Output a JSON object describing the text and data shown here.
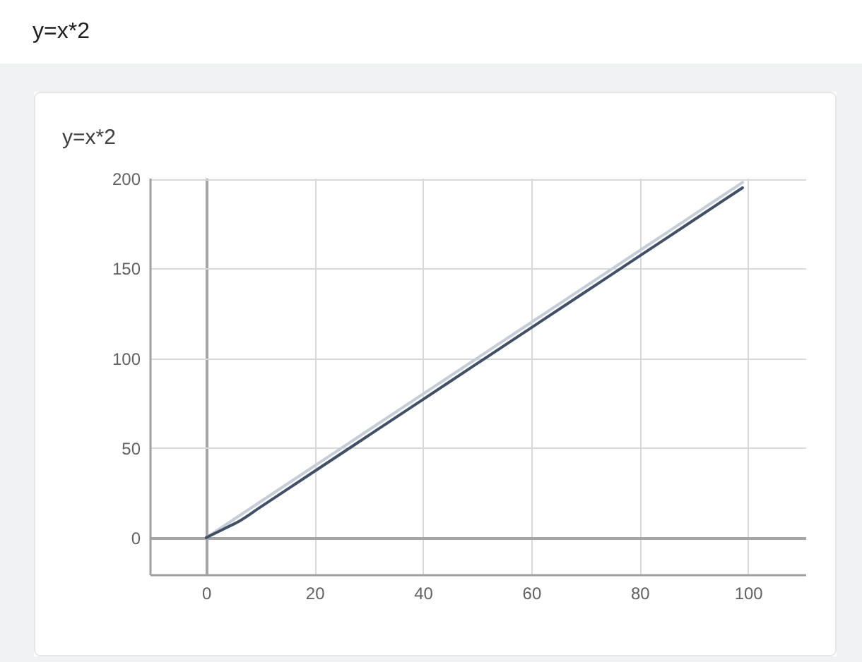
{
  "chart_data": {
    "type": "line",
    "title": "y=x*2",
    "subtitle": "y=x*2",
    "series": [
      {
        "color": "#c5cdd9",
        "x": [
          0,
          10,
          20,
          30,
          40,
          50,
          60,
          70,
          80,
          90,
          99
        ],
        "values": [
          0,
          20,
          40,
          60,
          80,
          100,
          120,
          140,
          160,
          180,
          198
        ]
      },
      {
        "color": "#425066",
        "x": [
          0,
          2,
          4,
          6,
          10,
          20,
          30,
          40,
          50,
          60,
          70,
          80,
          90,
          99
        ],
        "values": [
          0,
          3,
          6,
          9,
          17,
          37,
          57,
          77,
          97,
          117,
          137,
          157,
          177,
          195
        ]
      }
    ],
    "xlim": [
      -10.4,
      110.6
    ],
    "ylim": [
      -20.5,
      200.5
    ],
    "xticks": [
      0,
      20,
      40,
      60,
      80,
      100
    ],
    "yticks": [
      0,
      50,
      100,
      150,
      200
    ],
    "grid": true
  }
}
